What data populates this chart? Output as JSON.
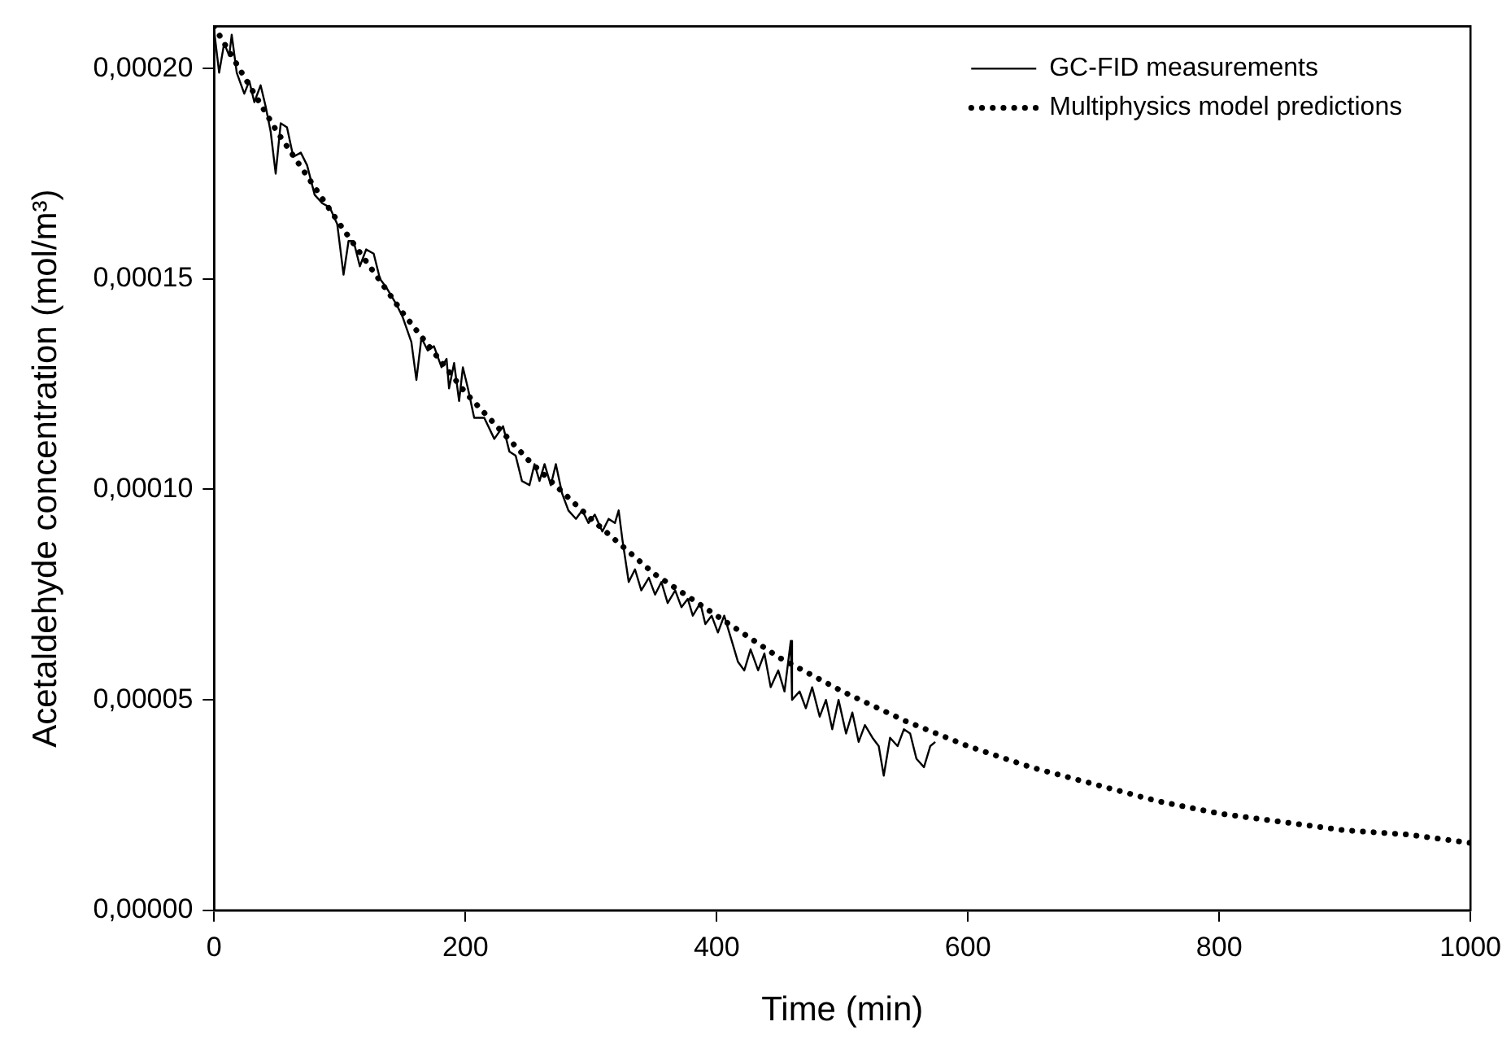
{
  "chart_data": {
    "type": "line",
    "xlabel": "Time (min)",
    "ylabel": "Acetaldehyde concentration (mol/m³)",
    "xlim": [
      0,
      1000
    ],
    "xticks": [
      0,
      200,
      400,
      600,
      800,
      1000
    ],
    "ylim": [
      0,
      0.00021
    ],
    "yticks": [
      {
        "value": 0,
        "label": "0,00000"
      },
      {
        "value": 5e-05,
        "label": "0,00005"
      },
      {
        "value": 0.0001,
        "label": "0,00010"
      },
      {
        "value": 0.00015,
        "label": "0,00015"
      },
      {
        "value": 0.0002,
        "label": "0,00020"
      }
    ],
    "legend": "top right",
    "marker": "none",
    "series": [
      {
        "name": "GC-FID measurements",
        "color": "#000000",
        "line_style": "solid",
        "x": [
          0,
          4,
          8,
          12,
          14,
          18,
          24,
          28,
          32,
          37,
          41,
          45,
          49,
          53,
          58,
          63,
          69,
          74,
          80,
          86,
          92,
          98,
          103,
          107,
          111,
          116,
          121,
          127,
          132,
          137,
          145,
          150,
          157,
          161,
          165,
          170,
          175,
          181,
          185,
          187,
          191,
          195,
          198,
          202,
          207,
          215,
          223,
          230,
          235,
          240,
          245,
          251,
          255,
          259,
          263,
          268,
          272,
          277,
          282,
          288,
          293,
          298,
          303,
          309,
          314,
          319,
          322,
          325,
          330,
          335,
          340,
          346,
          351,
          356,
          361,
          367,
          372,
          377,
          381,
          387,
          391,
          396,
          401,
          406,
          412,
          417,
          422,
          427,
          433,
          438,
          443,
          449,
          454,
          459,
          460,
          466,
          471,
          476,
          482,
          487,
          492,
          497,
          503,
          508,
          513,
          518,
          524,
          529,
          533,
          538,
          544,
          549,
          554,
          559,
          565,
          570,
          574
        ],
        "values": [
          0.000209,
          0.000199,
          0.000206,
          0.000203,
          0.000208,
          0.000199,
          0.000194,
          0.000197,
          0.000192,
          0.000196,
          0.000191,
          0.000185,
          0.000175,
          0.000187,
          0.000186,
          0.000179,
          0.00018,
          0.000177,
          0.00017,
          0.000168,
          0.000167,
          0.000163,
          0.000151,
          0.000159,
          0.000159,
          0.000153,
          0.000157,
          0.000156,
          0.00015,
          0.000148,
          0.000144,
          0.000141,
          0.000135,
          0.000126,
          0.000136,
          0.000133,
          0.000134,
          0.000129,
          0.000131,
          0.000124,
          0.00013,
          0.000121,
          0.000129,
          0.000124,
          0.000117,
          0.000117,
          0.000112,
          0.000115,
          0.000109,
          0.000108,
          0.000102,
          0.000101,
          0.000106,
          0.000102,
          0.000106,
          0.000101,
          0.000106,
          9.9e-05,
          9.5e-05,
          9.3e-05,
          9.5e-05,
          9.2e-05,
          9.4e-05,
          9e-05,
          9.3e-05,
          9.2e-05,
          9.5e-05,
          8.8e-05,
          7.8e-05,
          8.1e-05,
          7.6e-05,
          7.9e-05,
          7.5e-05,
          7.8e-05,
          7.3e-05,
          7.6e-05,
          7.2e-05,
          7.4e-05,
          7e-05,
          7.3e-05,
          6.8e-05,
          7e-05,
          6.6e-05,
          7e-05,
          6.4e-05,
          5.9e-05,
          5.7e-05,
          6.2e-05,
          5.7e-05,
          6.1e-05,
          5.3e-05,
          5.7e-05,
          5.2e-05,
          6.4e-05,
          5e-05,
          5.2e-05,
          4.8e-05,
          5.3e-05,
          4.6e-05,
          5e-05,
          4.3e-05,
          5e-05,
          4.2e-05,
          4.7e-05,
          4e-05,
          4.4e-05,
          4.1e-05,
          3.9e-05,
          3.2e-05,
          4.1e-05,
          3.9e-05,
          4.3e-05,
          4.2e-05,
          3.6e-05,
          3.4e-05,
          3.9e-05,
          4e-05
        ]
      },
      {
        "name": "Multiphysics model predictions",
        "color": "#000000",
        "line_style": "dotted",
        "x": [
          0,
          50,
          100,
          150,
          200,
          250,
          300,
          350,
          400,
          450,
          500,
          550,
          600,
          650,
          700,
          750,
          800,
          850,
          900,
          950,
          1000
        ],
        "values": [
          0.00021,
          0.000185,
          0.000163,
          0.000142,
          0.000123,
          0.000107,
          9.3e-05,
          8e-05,
          7e-05,
          6e-05,
          5.2e-05,
          4.5e-05,
          3.9e-05,
          3.4e-05,
          3e-05,
          2.6e-05,
          2.3e-05,
          2.1e-05,
          1.9e-05,
          1.8e-05,
          1.6e-05
        ]
      }
    ]
  }
}
